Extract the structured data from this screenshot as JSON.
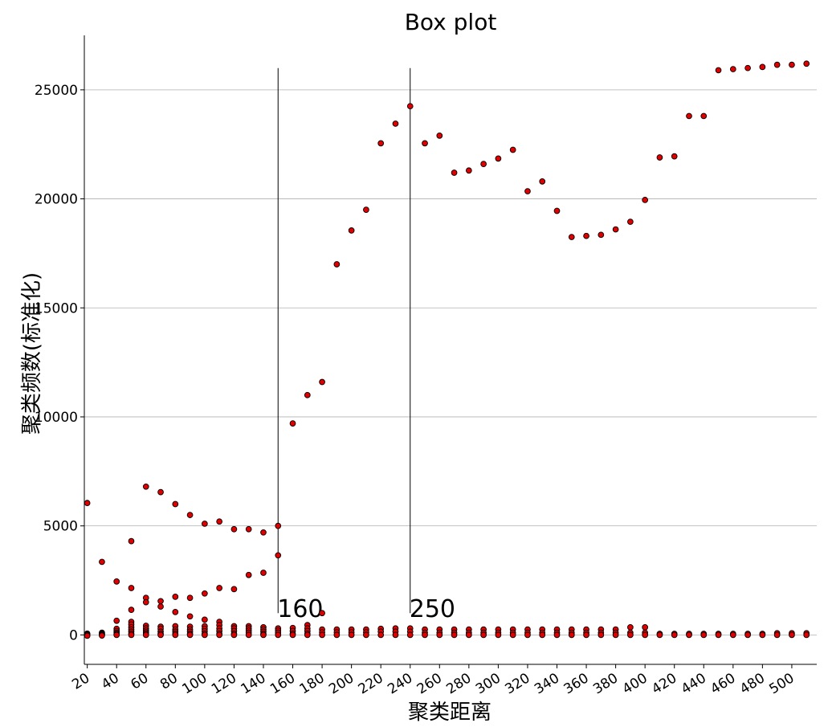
{
  "chart_data": {
    "type": "scatter",
    "title": "Box plot",
    "xlabel": "聚类距离",
    "ylabel": "聚类频数(标准化)",
    "xlim": [
      18,
      517
    ],
    "ylim": [
      -1350,
      27500
    ],
    "yticks": [
      0,
      5000,
      10000,
      15000,
      20000,
      25000
    ],
    "xticks": [
      20,
      40,
      60,
      80,
      100,
      120,
      140,
      160,
      180,
      200,
      220,
      240,
      260,
      280,
      300,
      320,
      340,
      360,
      380,
      400,
      420,
      440,
      460,
      480,
      500
    ],
    "grid": "horizontal",
    "annotations": [
      {
        "text": "160",
        "x": 150,
        "line_top": 26000,
        "line_bottom": 1000
      },
      {
        "text": "250",
        "x": 240,
        "line_top": 26000,
        "line_bottom": 1000
      }
    ],
    "columns": [
      {
        "x": 20,
        "values": [
          6050,
          60,
          20,
          -10,
          -40
        ]
      },
      {
        "x": 30,
        "values": [
          3350,
          100,
          60,
          30,
          0,
          -30
        ]
      },
      {
        "x": 40,
        "values": [
          2450,
          650,
          280,
          180,
          100,
          40,
          0
        ]
      },
      {
        "x": 50,
        "values": [
          4300,
          2150,
          1150,
          600,
          480,
          350,
          250,
          150,
          60,
          0
        ]
      },
      {
        "x": 60,
        "values": [
          6800,
          1700,
          1500,
          420,
          300,
          200,
          120,
          50,
          0
        ]
      },
      {
        "x": 70,
        "values": [
          6550,
          1550,
          1300,
          380,
          280,
          150,
          60,
          0
        ]
      },
      {
        "x": 80,
        "values": [
          6000,
          1750,
          1050,
          400,
          250,
          150,
          60,
          0
        ]
      },
      {
        "x": 90,
        "values": [
          5500,
          1700,
          850,
          380,
          250,
          150,
          50,
          0
        ]
      },
      {
        "x": 100,
        "values": [
          5100,
          1900,
          700,
          400,
          280,
          170,
          60,
          0
        ]
      },
      {
        "x": 110,
        "values": [
          5200,
          2150,
          600,
          450,
          300,
          180,
          60,
          0
        ]
      },
      {
        "x": 120,
        "values": [
          4850,
          2100,
          400,
          300,
          180,
          60,
          0
        ]
      },
      {
        "x": 130,
        "values": [
          4850,
          2750,
          400,
          300,
          200,
          100,
          0
        ]
      },
      {
        "x": 140,
        "values": [
          4700,
          2850,
          350,
          250,
          150,
          50,
          0
        ]
      },
      {
        "x": 150,
        "values": [
          5000,
          3650,
          300,
          200,
          100,
          0
        ]
      },
      {
        "x": 160,
        "values": [
          9700,
          320,
          180,
          60,
          0
        ]
      },
      {
        "x": 170,
        "values": [
          11000,
          450,
          300,
          180,
          60,
          0
        ]
      },
      {
        "x": 180,
        "values": [
          11600,
          1000,
          250,
          120,
          0
        ]
      },
      {
        "x": 190,
        "values": [
          17000,
          250,
          120,
          0
        ]
      },
      {
        "x": 200,
        "values": [
          18550,
          250,
          120,
          0
        ]
      },
      {
        "x": 210,
        "values": [
          19500,
          250,
          120,
          0
        ]
      },
      {
        "x": 220,
        "values": [
          22550,
          280,
          150,
          0
        ]
      },
      {
        "x": 230,
        "values": [
          23450,
          300,
          150,
          0
        ]
      },
      {
        "x": 240,
        "values": [
          24250,
          300,
          150,
          0
        ]
      },
      {
        "x": 250,
        "values": [
          22550,
          250,
          100,
          0
        ]
      },
      {
        "x": 260,
        "values": [
          22900,
          250,
          100,
          0
        ]
      },
      {
        "x": 270,
        "values": [
          21200,
          250,
          100,
          0
        ]
      },
      {
        "x": 280,
        "values": [
          21300,
          250,
          100,
          0
        ]
      },
      {
        "x": 290,
        "values": [
          21600,
          250,
          100,
          0
        ]
      },
      {
        "x": 300,
        "values": [
          21850,
          250,
          100,
          0
        ]
      },
      {
        "x": 310,
        "values": [
          22250,
          250,
          100,
          0
        ]
      },
      {
        "x": 320,
        "values": [
          20350,
          250,
          100,
          0
        ]
      },
      {
        "x": 330,
        "values": [
          20800,
          250,
          100,
          0
        ]
      },
      {
        "x": 340,
        "values": [
          19450,
          250,
          100,
          0
        ]
      },
      {
        "x": 350,
        "values": [
          18250,
          250,
          100,
          0
        ]
      },
      {
        "x": 360,
        "values": [
          18300,
          250,
          100,
          0
        ]
      },
      {
        "x": 370,
        "values": [
          18350,
          250,
          100,
          0
        ]
      },
      {
        "x": 380,
        "values": [
          18600,
          250,
          100,
          0
        ]
      },
      {
        "x": 390,
        "values": [
          18950,
          350,
          100,
          0
        ]
      },
      {
        "x": 400,
        "values": [
          19950,
          350,
          100,
          0
        ]
      },
      {
        "x": 410,
        "values": [
          21900,
          50,
          0
        ]
      },
      {
        "x": 420,
        "values": [
          21950,
          50,
          0
        ]
      },
      {
        "x": 430,
        "values": [
          23800,
          50,
          0
        ]
      },
      {
        "x": 440,
        "values": [
          23800,
          50,
          0
        ]
      },
      {
        "x": 450,
        "values": [
          25900,
          50,
          0
        ]
      },
      {
        "x": 460,
        "values": [
          25950,
          50,
          0
        ]
      },
      {
        "x": 470,
        "values": [
          26000,
          50,
          0
        ]
      },
      {
        "x": 480,
        "values": [
          26050,
          50,
          0
        ]
      },
      {
        "x": 490,
        "values": [
          26150,
          80,
          0
        ]
      },
      {
        "x": 500,
        "values": [
          26150,
          80,
          0
        ]
      },
      {
        "x": 510,
        "values": [
          26200,
          80,
          0
        ]
      }
    ]
  }
}
